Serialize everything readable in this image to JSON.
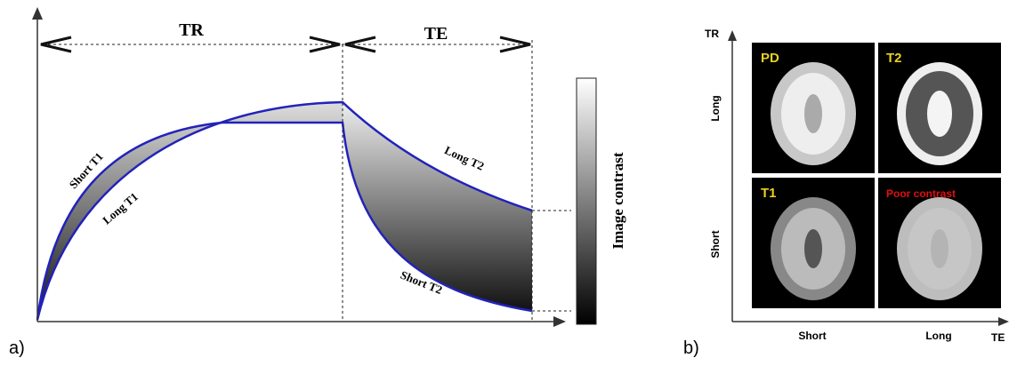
{
  "panel_a": {
    "label": "a)",
    "tr": "TR",
    "te": "TE",
    "curves": {
      "short_t1": "Short T1",
      "long_t1": "Long T1",
      "long_t2": "Long T2",
      "short_t2": "Short T2"
    },
    "image_contrast": "Image contrast"
  },
  "panel_b": {
    "label": "b)",
    "y_axis": "TR",
    "x_axis": "TE",
    "y_labels": [
      "Long",
      "Short"
    ],
    "x_labels": [
      "Short",
      "Long"
    ],
    "tiles": [
      "PD",
      "T2",
      "T1",
      "Poor contrast"
    ]
  }
}
